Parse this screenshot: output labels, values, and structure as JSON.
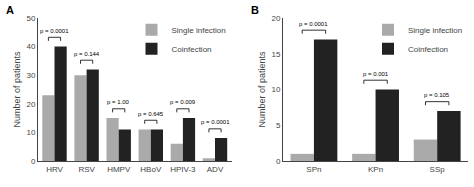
{
  "chart_data": [
    {
      "type": "bar",
      "title": "A",
      "categories": [
        "HRV",
        "RSV",
        "HMPV",
        "HBoV",
        "HPIV-3",
        "ADV"
      ],
      "series": [
        {
          "name": "Single infection",
          "color": "#aaaaaa",
          "values": [
            23,
            30,
            15,
            11,
            6,
            1
          ]
        },
        {
          "name": "Coinfection",
          "color": "#222222",
          "values": [
            40,
            32,
            11,
            11,
            15,
            8
          ]
        }
      ],
      "annotations": [
        "p = 0.0001",
        "p = 0.144",
        "p = 1.00",
        "p = 0.645",
        "p = 0.009",
        "p = 0.0001"
      ],
      "ylabel": "Number of patients",
      "ylim": [
        0,
        50
      ],
      "yticks": [
        0,
        10,
        20,
        30,
        40,
        50
      ],
      "grid": false,
      "legend": "upper right"
    },
    {
      "type": "bar",
      "title": "B",
      "categories": [
        "SPn",
        "KPn",
        "SSp"
      ],
      "series": [
        {
          "name": "Single infection",
          "color": "#aaaaaa",
          "values": [
            1,
            1,
            3
          ]
        },
        {
          "name": "Coinfection",
          "color": "#222222",
          "values": [
            17,
            10,
            7
          ]
        }
      ],
      "annotations": [
        "p = 0.0001",
        "p = 0.001",
        "p = 0.105"
      ],
      "ylabel": "Number of patients",
      "ylim": [
        0,
        20
      ],
      "yticks": [
        0,
        5,
        10,
        15,
        20
      ],
      "grid": false,
      "legend": "upper right"
    }
  ]
}
